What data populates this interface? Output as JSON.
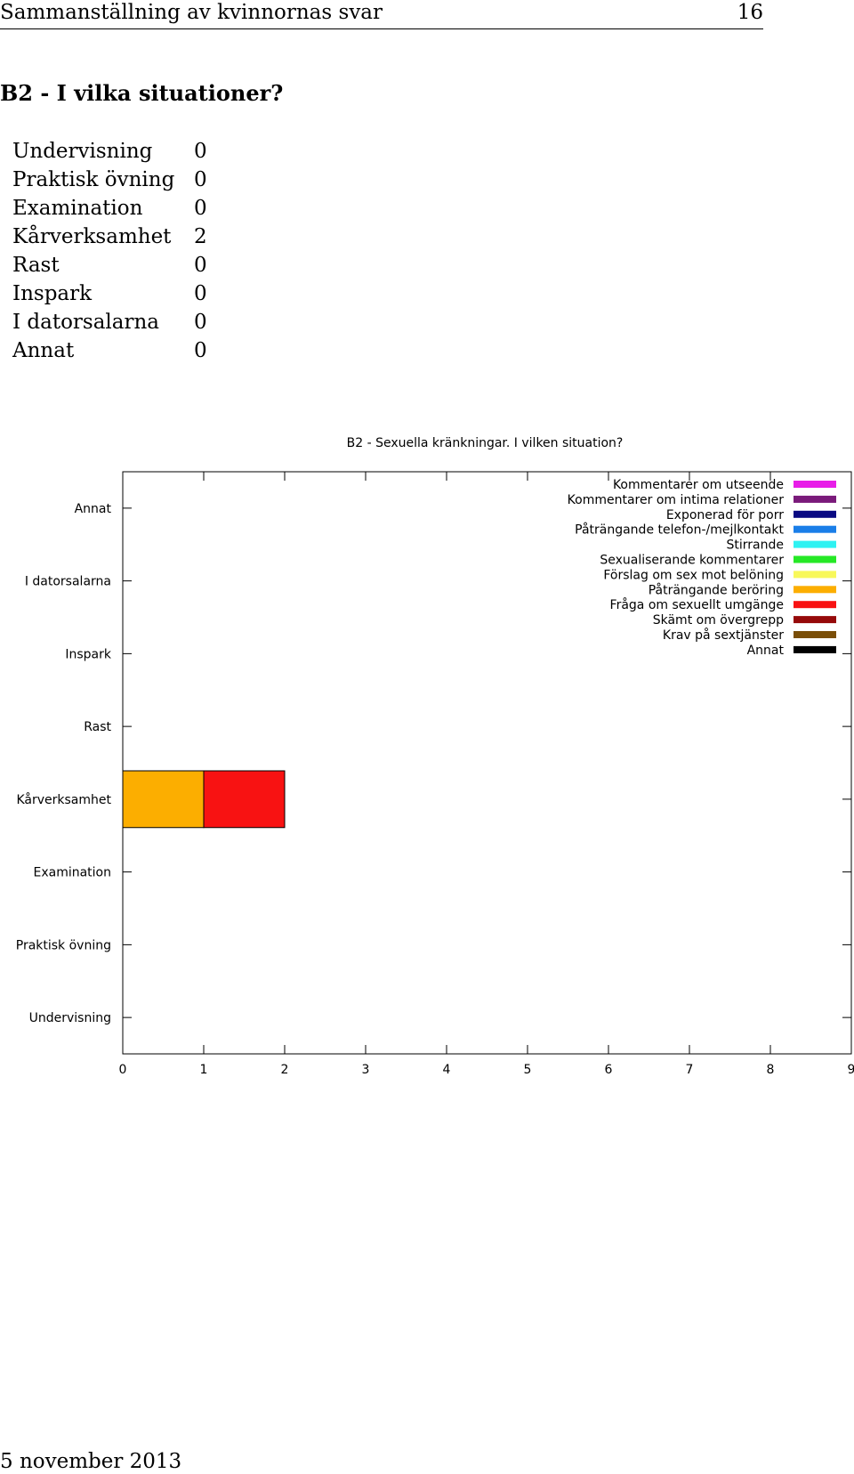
{
  "header": {
    "title": "Sammanställning av kvinnornas svar",
    "page_number": "16"
  },
  "section": {
    "title": "B2 - I vilka situationer?"
  },
  "summary": [
    {
      "label": "Undervisning",
      "count": "0"
    },
    {
      "label": "Praktisk övning",
      "count": "0"
    },
    {
      "label": "Examination",
      "count": "0"
    },
    {
      "label": "Kårverksamhet",
      "count": "2"
    },
    {
      "label": "Rast",
      "count": "0"
    },
    {
      "label": "Inspark",
      "count": "0"
    },
    {
      "label": "I datorsalarna",
      "count": "0"
    },
    {
      "label": "Annat",
      "count": "0"
    }
  ],
  "chart_data": {
    "type": "bar",
    "orientation": "horizontal",
    "stacked": true,
    "title": "B2 - Sexuella kränkningar. I vilken situation?",
    "categories": [
      "Annat",
      "I datorsalarna",
      "Inspark",
      "Rast",
      "Kårverksamhet",
      "Examination",
      "Praktisk övning",
      "Undervisning"
    ],
    "xlim": [
      0,
      9
    ],
    "xticks": [
      "0",
      "1",
      "2",
      "3",
      "4",
      "5",
      "6",
      "7",
      "8",
      "9"
    ],
    "grid": false,
    "legend_position": "top-right",
    "series": [
      {
        "name": "Kommentarer om utseende",
        "color": "#e81ee8",
        "values": [
          0,
          0,
          0,
          0,
          0,
          0,
          0,
          0
        ]
      },
      {
        "name": "Kommentarer om intima relationer",
        "color": "#7a1a7a",
        "values": [
          0,
          0,
          0,
          0,
          0,
          0,
          0,
          0
        ]
      },
      {
        "name": "Exponerad för porr",
        "color": "#0a0a82",
        "values": [
          0,
          0,
          0,
          0,
          0,
          0,
          0,
          0
        ]
      },
      {
        "name": "Påträngande telefon-/mejlkontakt",
        "color": "#1a7ee8",
        "values": [
          0,
          0,
          0,
          0,
          0,
          0,
          0,
          0
        ]
      },
      {
        "name": "Stirrande",
        "color": "#2ef2f2",
        "values": [
          0,
          0,
          0,
          0,
          0,
          0,
          0,
          0
        ]
      },
      {
        "name": "Sexualiserande kommentarer",
        "color": "#26e826",
        "values": [
          0,
          0,
          0,
          0,
          0,
          0,
          0,
          0
        ]
      },
      {
        "name": "Förslag om sex mot belöning",
        "color": "#f8f85a",
        "values": [
          0,
          0,
          0,
          0,
          0,
          0,
          0,
          0
        ]
      },
      {
        "name": "Påträngande beröring",
        "color": "#fcae00",
        "values": [
          0,
          0,
          0,
          0,
          1,
          0,
          0,
          0
        ]
      },
      {
        "name": "Fråga om sexuellt umgänge",
        "color": "#f81212",
        "values": [
          0,
          0,
          0,
          0,
          1,
          0,
          0,
          0
        ]
      },
      {
        "name": "Skämt om övergrepp",
        "color": "#960a0a",
        "values": [
          0,
          0,
          0,
          0,
          0,
          0,
          0,
          0
        ]
      },
      {
        "name": "Krav på sextjänster",
        "color": "#7a4e08",
        "values": [
          0,
          0,
          0,
          0,
          0,
          0,
          0,
          0
        ]
      },
      {
        "name": "Annat",
        "color": "#000000",
        "values": [
          0,
          0,
          0,
          0,
          0,
          0,
          0,
          0
        ]
      }
    ]
  },
  "footer": {
    "date": "5 november 2013"
  }
}
